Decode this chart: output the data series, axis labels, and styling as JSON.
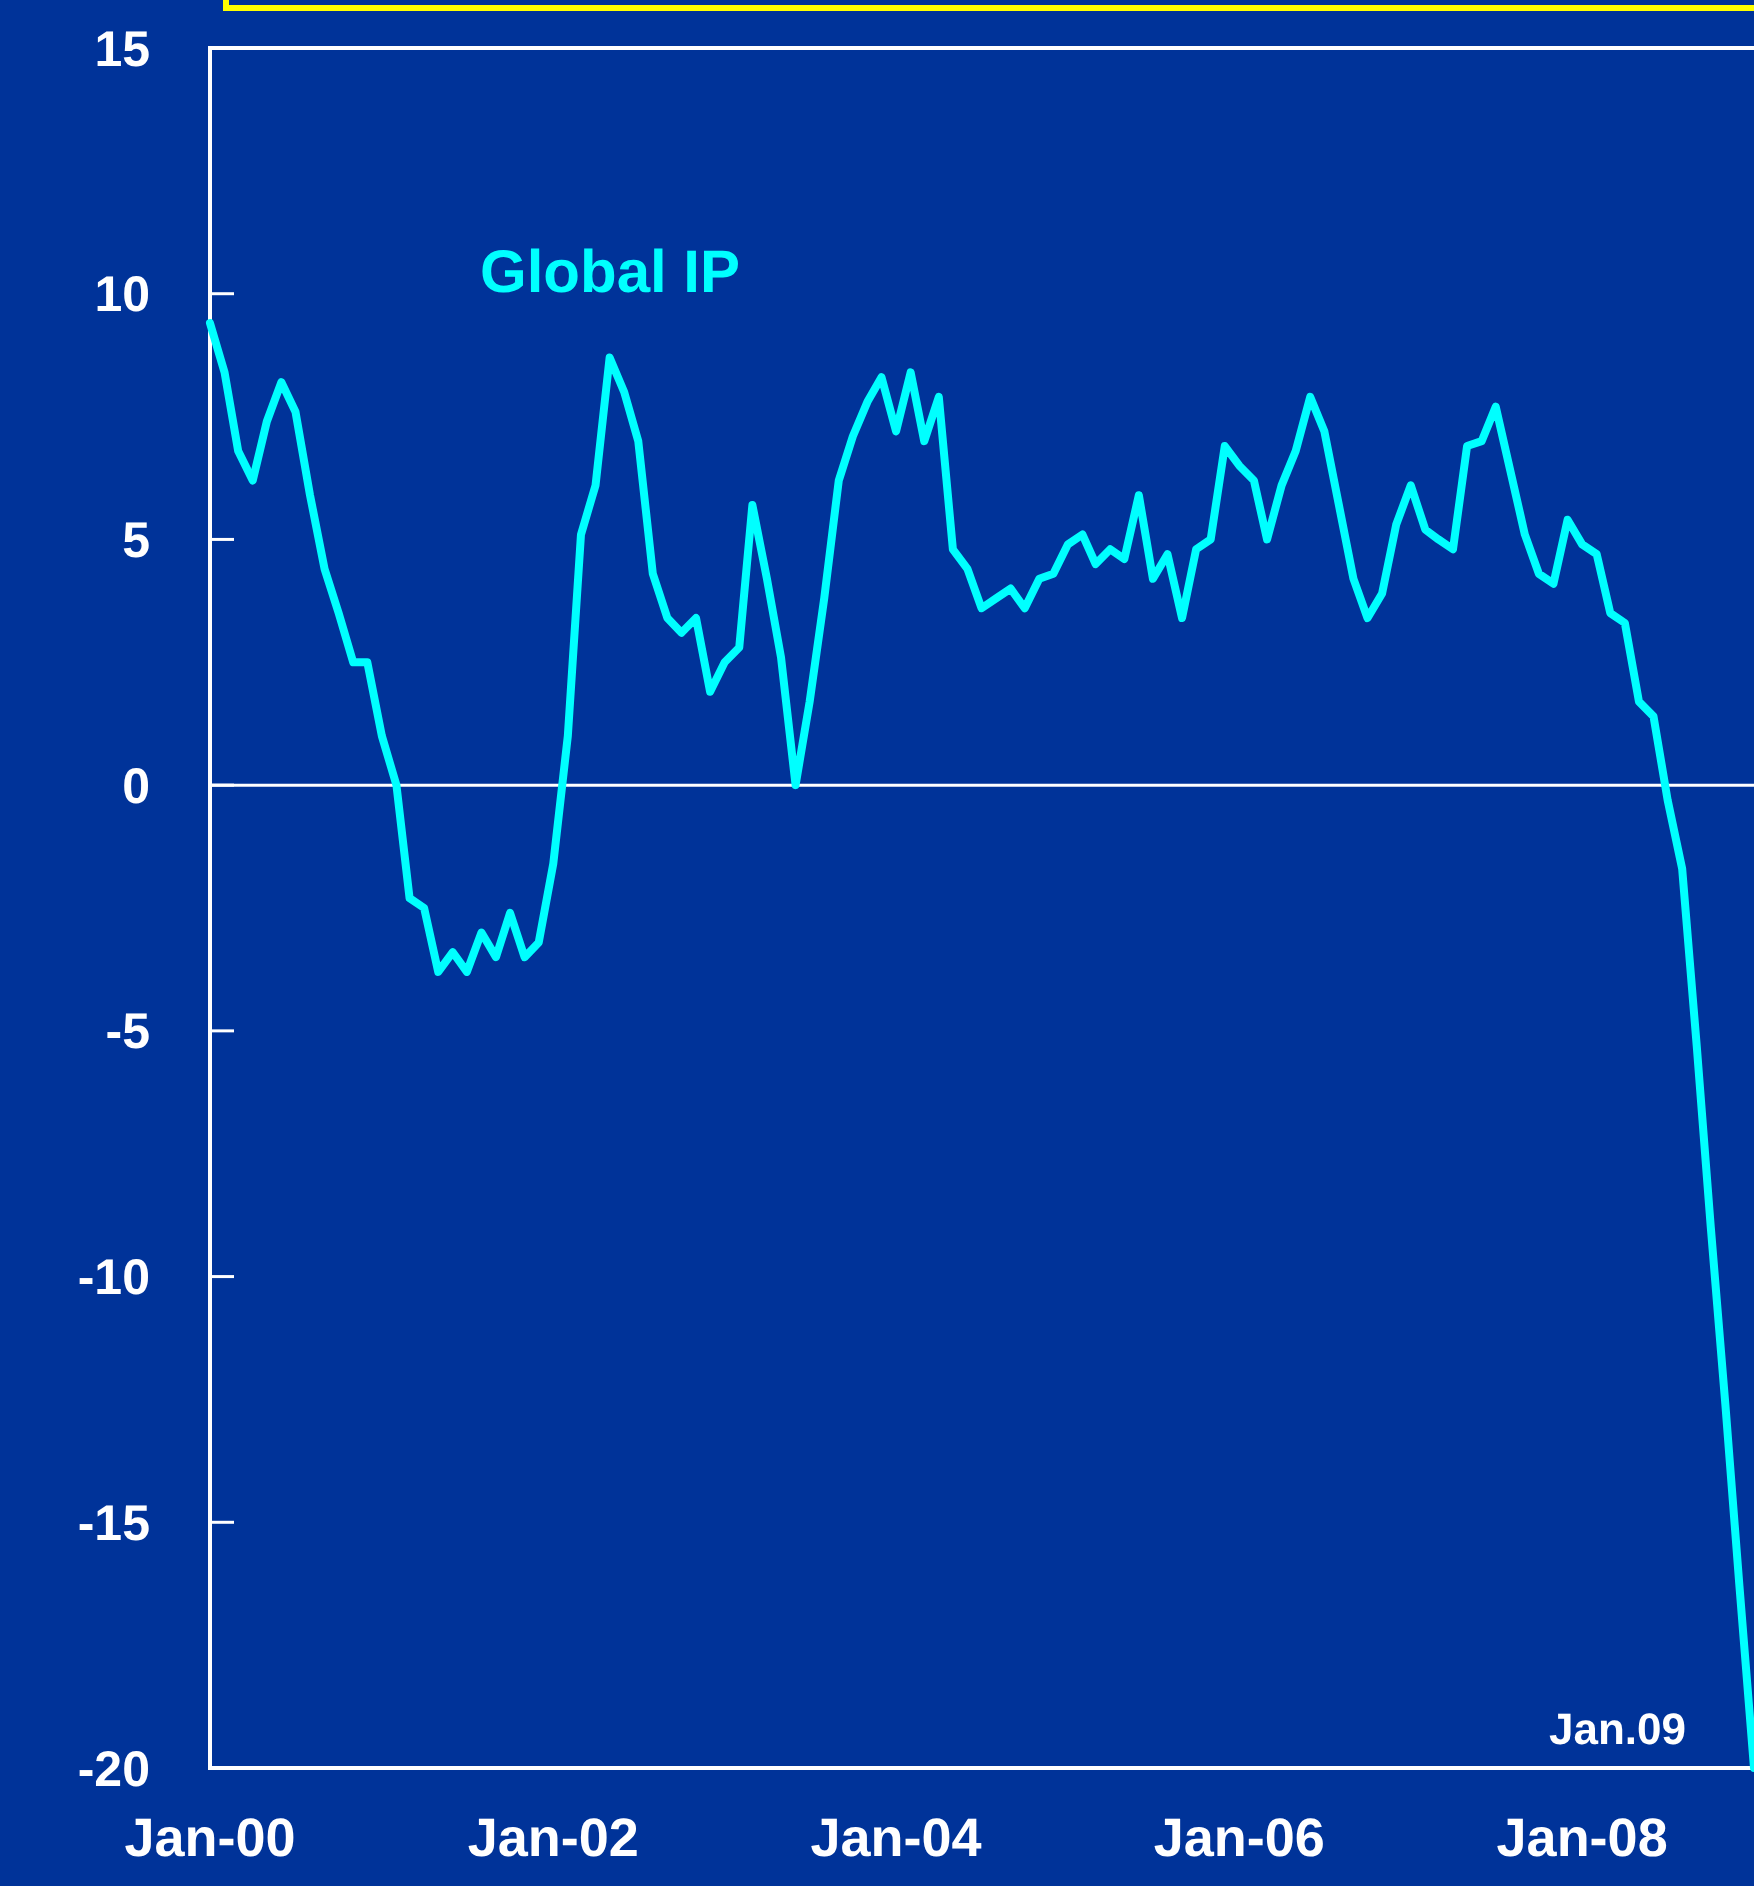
{
  "chart_data": {
    "type": "line",
    "x": [
      "2000-01",
      "2000-02",
      "2000-03",
      "2000-04",
      "2000-05",
      "2000-06",
      "2000-07",
      "2000-08",
      "2000-09",
      "2000-10",
      "2000-11",
      "2000-12",
      "2001-01",
      "2001-02",
      "2001-03",
      "2001-04",
      "2001-05",
      "2001-06",
      "2001-07",
      "2001-08",
      "2001-09",
      "2001-10",
      "2001-11",
      "2001-12",
      "2002-01",
      "2002-02",
      "2002-03",
      "2002-04",
      "2002-05",
      "2002-06",
      "2002-07",
      "2002-08",
      "2002-09",
      "2002-10",
      "2002-11",
      "2002-12",
      "2003-01",
      "2003-02",
      "2003-03",
      "2003-04",
      "2003-05",
      "2003-06",
      "2003-07",
      "2003-08",
      "2003-09",
      "2003-10",
      "2003-11",
      "2003-12",
      "2004-01",
      "2004-02",
      "2004-03",
      "2004-04",
      "2004-05",
      "2004-06",
      "2004-07",
      "2004-08",
      "2004-09",
      "2004-10",
      "2004-11",
      "2004-12",
      "2005-01",
      "2005-02",
      "2005-03",
      "2005-04",
      "2005-05",
      "2005-06",
      "2005-07",
      "2005-08",
      "2005-09",
      "2005-10",
      "2005-11",
      "2005-12",
      "2006-01",
      "2006-02",
      "2006-03",
      "2006-04",
      "2006-05",
      "2006-06",
      "2006-07",
      "2006-08",
      "2006-09",
      "2006-10",
      "2006-11",
      "2006-12",
      "2007-01",
      "2007-02",
      "2007-03",
      "2007-04",
      "2007-05",
      "2007-06",
      "2007-07",
      "2007-08",
      "2007-09",
      "2007-10",
      "2007-11",
      "2007-12",
      "2008-01",
      "2008-02",
      "2008-03",
      "2008-04",
      "2008-05",
      "2008-06",
      "2008-07",
      "2008-08",
      "2008-09",
      "2008-10",
      "2008-11",
      "2008-12",
      "2009-01"
    ],
    "series": [
      {
        "name": "Global IP",
        "color": "#00ffff",
        "values": [
          9.4,
          8.4,
          6.8,
          6.2,
          7.4,
          8.2,
          7.6,
          5.9,
          4.4,
          3.5,
          2.5,
          2.5,
          1.0,
          0.0,
          -2.3,
          -2.5,
          -3.8,
          -3.4,
          -3.8,
          -3.0,
          -3.5,
          -2.6,
          -3.5,
          -3.2,
          -1.6,
          1.0,
          5.1,
          6.1,
          8.7,
          8.0,
          7.0,
          4.3,
          3.4,
          3.1,
          3.4,
          1.9,
          2.5,
          2.8,
          5.7,
          4.2,
          2.6,
          0.0,
          1.7,
          3.8,
          6.2,
          7.1,
          7.8,
          8.3,
          7.2,
          8.4,
          7.0,
          7.9,
          4.8,
          4.4,
          3.6,
          3.8,
          4.0,
          3.6,
          4.2,
          4.3,
          4.9,
          5.1,
          4.5,
          4.8,
          4.6,
          5.9,
          4.2,
          4.7,
          3.4,
          4.8,
          5.0,
          6.9,
          6.5,
          6.2,
          5.0,
          6.1,
          6.8,
          7.9,
          7.2,
          5.7,
          4.2,
          3.4,
          3.9,
          5.3,
          6.1,
          5.2,
          5.0,
          4.8,
          6.9,
          7.0,
          7.7,
          6.4,
          5.1,
          4.3,
          4.1,
          5.4,
          4.9,
          4.7,
          3.5,
          3.3,
          1.7,
          1.4,
          -0.3,
          -1.7,
          -5.3,
          -9.0,
          -12.6,
          -16.3,
          -20.0
        ]
      }
    ],
    "xlim": [
      "2000-01",
      "2009-01"
    ],
    "xticks": [
      {
        "value": "2000-01",
        "label": "Jan-00"
      },
      {
        "value": "2002-01",
        "label": "Jan-02"
      },
      {
        "value": "2004-01",
        "label": "Jan-04"
      },
      {
        "value": "2006-01",
        "label": "Jan-06"
      },
      {
        "value": "2008-01",
        "label": "Jan-08"
      }
    ],
    "ylim": [
      -20,
      15
    ],
    "yticks": [
      -20,
      -15,
      -10,
      -5,
      0,
      5,
      10,
      15
    ],
    "ref_lines": [
      {
        "axis": "y",
        "value": 0,
        "color": "#ffffff"
      }
    ],
    "annotations": [
      {
        "text": "Jan.09",
        "x": "2009-01",
        "y": -20
      }
    ],
    "grid": false,
    "legend": false,
    "marker": "none",
    "line_style": "solid"
  }
}
